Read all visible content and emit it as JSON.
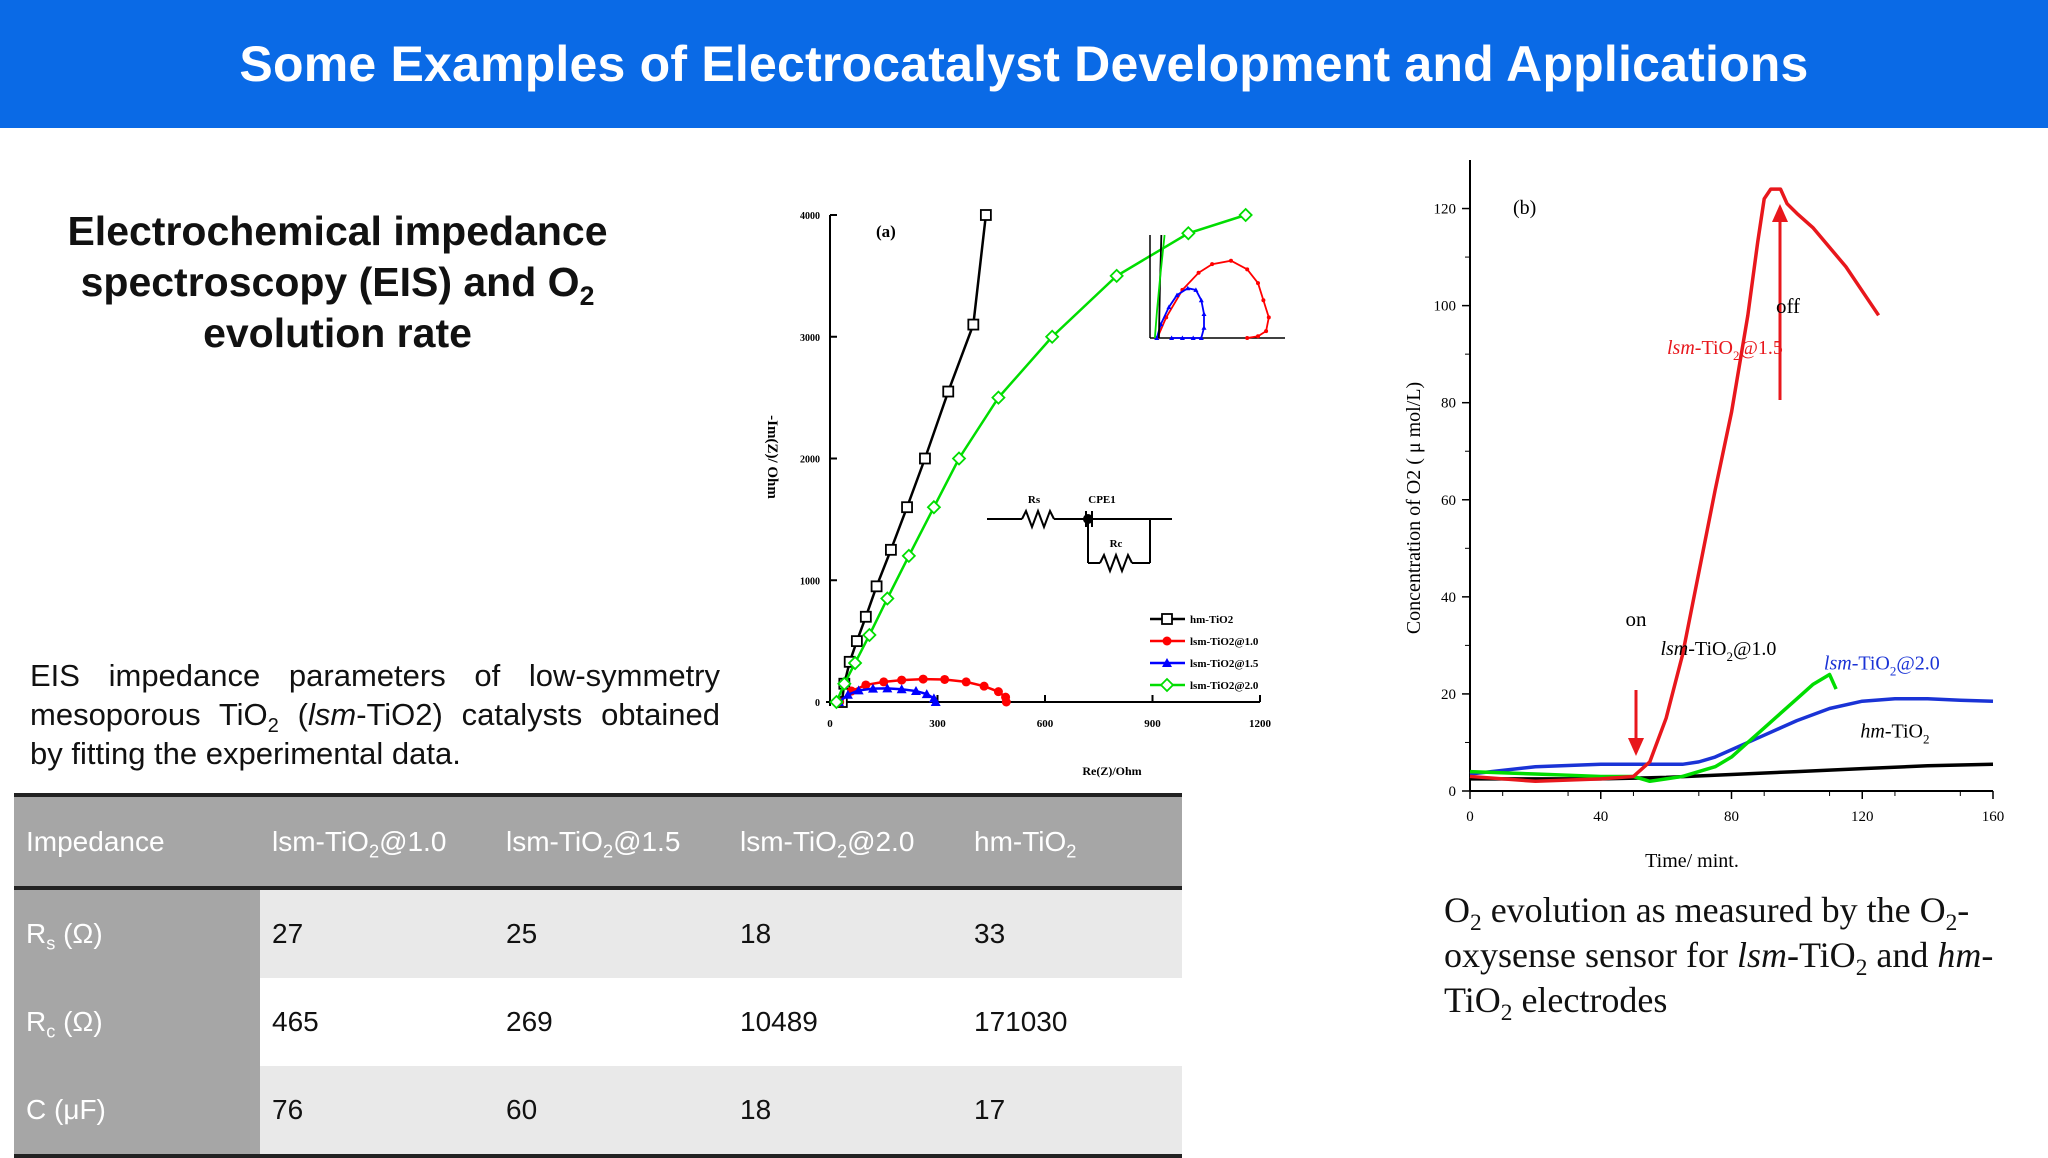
{
  "banner": {
    "title": "Some Examples of Electrocatalyst Development and Applications"
  },
  "section_title": {
    "line1": "Electrochemical impedance",
    "line2a": "spectroscopy (EIS) and O",
    "line2b": "2",
    "line3": "evolution rate"
  },
  "description": {
    "pre": "EIS impedance parameters of low-symmetry mesoporous TiO",
    "sub": "2",
    "open": " (",
    "italic": "lsm",
    "rest": "-TiO2) catalysts obtained by fitting the experimental data."
  },
  "table": {
    "headers": [
      {
        "text": "Impedance",
        "sub": "",
        "tail": ""
      },
      {
        "text": "lsm-TiO",
        "sub": "2",
        "tail": "@1.0"
      },
      {
        "text": "lsm-TiO",
        "sub": "2",
        "tail": "@1.5"
      },
      {
        "text": "lsm-TiO",
        "sub": "2",
        "tail": "@2.0"
      },
      {
        "text": "hm-TiO",
        "sub": "2",
        "tail": ""
      }
    ],
    "rows": [
      {
        "label": "R",
        "label_sub": "s",
        "unit": " (Ω)",
        "values": [
          "27",
          "25",
          "18",
          "33"
        ]
      },
      {
        "label": "R",
        "label_sub": "c",
        "unit": " (Ω)",
        "values": [
          "465",
          "269",
          "10489",
          "171030"
        ]
      },
      {
        "label": "C (μF)",
        "label_sub": "",
        "unit": "",
        "values": [
          "76",
          "60",
          "18",
          "17"
        ]
      }
    ]
  },
  "caption": {
    "p1": "O",
    "s1": "2",
    "p2": " evolution as measured by the O",
    "s2": "2",
    "p3": "-oxysense sensor for ",
    "i1": "lsm",
    "p4": "-TiO",
    "s3": "2",
    "p5": " and ",
    "i2": "hm",
    "p6": "-TiO",
    "s4": "2",
    "p7": " electrodes"
  },
  "chart_data": [
    {
      "type": "scatter",
      "panel_label": "(a)",
      "xlabel": "Re(Z)/Ohm",
      "ylabel": "-Im(Z)/ Ohm",
      "xlim": [
        0,
        1200
      ],
      "ylim": [
        0,
        4000
      ],
      "xticks": [
        "0",
        "300",
        "600",
        "900",
        "1200"
      ],
      "yticks": [
        "0",
        "1000",
        "2000",
        "3000",
        "4000"
      ],
      "colors": {
        "hm": "#000000",
        "at10": "#ff0000",
        "at15": "#0000ff",
        "at20": "#00dd00"
      },
      "legend": [
        "hm-TiO2",
        "lsm-TiO2@1.0",
        "lsm-TiO2@1.5",
        "lsm-TiO2@2.0"
      ],
      "circuit": {
        "r1": "Rs",
        "cpe": "CPE1",
        "r2": "Rc"
      },
      "series": [
        {
          "name": "hm-TiO2",
          "x": [
            33,
            40,
            55,
            75,
            100,
            130,
            170,
            215,
            265,
            330,
            400,
            435
          ],
          "y": [
            0,
            150,
            330,
            500,
            700,
            950,
            1250,
            1600,
            2000,
            2550,
            3100,
            4000
          ]
        },
        {
          "name": "lsm-TiO2@1.0",
          "x": [
            27,
            60,
            100,
            150,
            200,
            260,
            320,
            380,
            430,
            470,
            490,
            492
          ],
          "y": [
            0,
            90,
            140,
            165,
            180,
            188,
            185,
            165,
            130,
            85,
            40,
            0
          ]
        },
        {
          "name": "lsm-TiO2@1.5",
          "x": [
            25,
            50,
            80,
            120,
            160,
            200,
            240,
            270,
            290,
            295
          ],
          "y": [
            0,
            60,
            95,
            110,
            112,
            105,
            90,
            65,
            30,
            0
          ]
        },
        {
          "name": "lsm-TiO2@2.0",
          "x": [
            18,
            40,
            70,
            110,
            160,
            220,
            290,
            360,
            470,
            620,
            800,
            1000,
            1160
          ],
          "y": [
            0,
            150,
            320,
            550,
            850,
            1200,
            1600,
            2000,
            2500,
            3000,
            3500,
            3850,
            4000
          ]
        }
      ],
      "inset": {
        "xlim": [
          0,
          500
        ],
        "ylim": [
          0,
          300
        ],
        "series": [
          {
            "name": "lsm-TiO2@1.0",
            "x": [
              27,
              60,
              120,
              180,
              230,
              300,
              360,
              400,
              420,
              440,
              430,
              400,
              360
            ],
            "y": [
              0,
              60,
              140,
              190,
              215,
              225,
              200,
              160,
              110,
              60,
              20,
              5,
              0
            ]
          },
          {
            "name": "lsm-TiO2@1.5",
            "x": [
              25,
              40,
              70,
              100,
              140,
              170,
              190,
              200,
              200,
              190,
              160,
              120,
              80
            ],
            "y": [
              0,
              40,
              90,
              125,
              145,
              140,
              110,
              70,
              30,
              0,
              0,
              0,
              0
            ]
          },
          {
            "name": "hm-TiO2",
            "x": [
              33,
              35,
              37,
              40,
              42
            ],
            "y": [
              0,
              80,
              160,
              240,
              300
            ]
          },
          {
            "name": "lsm-TiO2@2.0",
            "x": [
              18,
              22,
              26,
              32,
              38,
              46,
              54
            ],
            "y": [
              0,
              40,
              80,
              130,
              180,
              240,
              300
            ]
          }
        ]
      }
    },
    {
      "type": "line",
      "panel_label": "(b)",
      "xlabel": "Time/ mint.",
      "ylabel": "Concentration of O2 ( μ mol/L)",
      "xlim": [
        0,
        160
      ],
      "ylim": [
        0,
        130
      ],
      "xticks": [
        "0",
        "40",
        "80",
        "120",
        "160"
      ],
      "yticks": [
        "0",
        "20",
        "40",
        "60",
        "80",
        "100",
        "120"
      ],
      "annotations": {
        "on": "on",
        "off": "off"
      },
      "series": [
        {
          "name": "lsm-TiO2@1.5",
          "color": "#e8171c",
          "x": [
            0,
            20,
            40,
            50,
            55,
            60,
            65,
            70,
            75,
            80,
            85,
            88,
            90,
            92,
            95,
            97,
            100,
            105,
            110,
            115,
            120,
            125
          ],
          "y": [
            3,
            2,
            2.5,
            3,
            6,
            15,
            28,
            45,
            62,
            78,
            98,
            113,
            122,
            124,
            124,
            121,
            119,
            116,
            112,
            108,
            103,
            98
          ]
        },
        {
          "name": "lsm-TiO2@1.0",
          "color": "#00dd00",
          "x": [
            0,
            20,
            40,
            50,
            55,
            60,
            65,
            70,
            75,
            80,
            85,
            90,
            95,
            100,
            105,
            110,
            112
          ],
          "y": [
            4,
            3.5,
            3,
            3,
            2,
            2.5,
            3,
            4,
            5,
            7,
            10,
            13,
            16,
            19,
            22,
            24,
            21
          ]
        },
        {
          "name": "lsm-TiO2@2.0",
          "color": "#1a33d6",
          "x": [
            0,
            20,
            40,
            55,
            65,
            70,
            75,
            80,
            85,
            90,
            95,
            100,
            110,
            120,
            130,
            140,
            150,
            160
          ],
          "y": [
            3.5,
            5,
            5.5,
            5.5,
            5.5,
            6,
            7,
            8.5,
            10,
            11.5,
            13,
            14.5,
            17,
            18.5,
            19,
            19,
            18.7,
            18.5
          ]
        },
        {
          "name": "hm-TiO2",
          "color": "#000000",
          "x": [
            0,
            20,
            40,
            60,
            80,
            100,
            120,
            140,
            160
          ],
          "y": [
            2.5,
            2.5,
            2.5,
            2.8,
            3.4,
            4,
            4.6,
            5.2,
            5.5
          ]
        }
      ],
      "labels": [
        {
          "series": "lsm-TiO2@1.5",
          "pre": "lsm",
          "mid": "-TiO",
          "sub": "2",
          "post": "@1.5",
          "color": "#e8171c"
        },
        {
          "series": "lsm-TiO2@1.0",
          "pre": "lsm",
          "mid": "-TiO",
          "sub": "2",
          "post": "@1.0",
          "color": "#000000"
        },
        {
          "series": "lsm-TiO2@2.0",
          "pre": "lsm",
          "mid": "-TiO",
          "sub": "2",
          "post": "@2.0",
          "color": "#1a33d6"
        },
        {
          "series": "hm-TiO2",
          "pre": "hm",
          "mid": "-TiO",
          "sub": "2",
          "post": "",
          "color": "#000000"
        }
      ]
    }
  ]
}
